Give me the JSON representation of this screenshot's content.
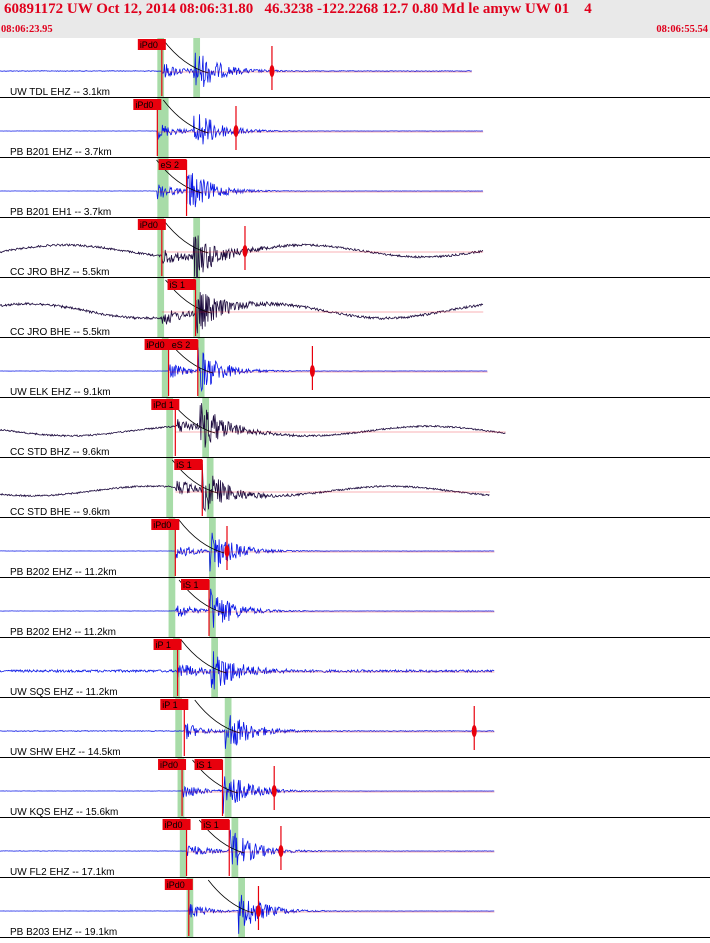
{
  "header": {
    "title": "60891172 UW Oct 12, 2014 08:06:31.80   46.3238 -122.2268 12.7 0.80 Md le amyw UW 01    4",
    "start_time": "08:06:23.95",
    "end_time": "08:06:55.54"
  },
  "colors": {
    "header_text": "#e0001c",
    "header_bg": "#e9e9e9",
    "trace_blue": "#0a17e6",
    "trace_dark": "#1c0a3e",
    "pick_red": "#e8000d",
    "window_green": "#a8dca8",
    "label_text": "#000000"
  },
  "chart_data": {
    "type": "line",
    "description_units": "seconds after 08:06:23.95",
    "x_range": [
      0,
      31.59
    ],
    "traces": [
      {
        "label": "UW TDL EHZ -- 3.1km",
        "color": "blue",
        "noise": 0.08,
        "p": {
          "label": "iPd0",
          "t": 7.2
        },
        "s": {
          "label": "",
          "t": 8.6
        },
        "green": [
          7.0,
          8.6
        ],
        "coda_end": 21.0,
        "end": 21.0,
        "red_tick": 12.1
      },
      {
        "label": "PB B201 EHZ -- 3.7km",
        "color": "blue",
        "noise": 0.02,
        "p": {
          "label": "iPd0",
          "t": 7.0
        },
        "s": {
          "label": "",
          "t": 8.6
        },
        "green": [
          7.0,
          7.2
        ],
        "coda_end": 21.5,
        "end": 21.5,
        "red_tick": 10.5
      },
      {
        "label": "PB B201 EH1 -- 3.7km",
        "color": "blue",
        "noise": 0.02,
        "p": {
          "label": "",
          "t": 7.0
        },
        "s": {
          "label": "eS 2",
          "t": 8.3
        },
        "green": [
          7.0,
          7.2
        ],
        "coda_end": 21.5,
        "end": 21.5,
        "red_tick": null
      },
      {
        "label": "CC JRO BHZ -- 5.5km",
        "color": "dark",
        "noise": 0.25,
        "p": {
          "label": "iPd0",
          "t": 7.2
        },
        "s": {
          "label": "",
          "t": 8.6
        },
        "green": [
          7.0,
          8.6
        ],
        "coda_end": 21.5,
        "end": 21.5,
        "red_tick": 10.9
      },
      {
        "label": "CC JRO BHE -- 5.5km",
        "color": "dark",
        "noise": 0.3,
        "p": {
          "label": "",
          "t": 7.2
        },
        "s": {
          "label": "iS 1",
          "t": 8.7
        },
        "green": [
          7.0,
          8.6
        ],
        "coda_end": 21.5,
        "end": 21.5,
        "red_tick": null
      },
      {
        "label": "UW ELK EHZ -- 9.1km",
        "color": "blue",
        "noise": 0.02,
        "p": {
          "label": "iPd0",
          "t": 7.5
        },
        "s": {
          "label": "eS 2",
          "t": 8.8
        },
        "green": [
          7.2,
          8.8
        ],
        "coda_end": 21.7,
        "end": 21.7,
        "red_tick": 13.9
      },
      {
        "label": "CC STD BHZ -- 9.6km",
        "color": "dark",
        "noise": 0.2,
        "p": {
          "label": "iPd 1",
          "t": 7.8
        },
        "s": {
          "label": "",
          "t": 8.9
        },
        "green": [
          7.4,
          9.0
        ],
        "coda_end": 22.5,
        "end": 22.5,
        "red_tick": null
      },
      {
        "label": "CC STD BHE -- 9.6km",
        "color": "dark",
        "noise": 0.2,
        "p": {
          "label": "",
          "t": 7.8
        },
        "s": {
          "label": "iS 1",
          "t": 9.0
        },
        "green": [
          7.4,
          9.2
        ],
        "coda_end": 21.8,
        "end": 21.8,
        "red_tick": null
      },
      {
        "label": "PB B202 EHZ -- 11.2km",
        "color": "blue",
        "noise": 0.02,
        "p": {
          "label": "iPd0",
          "t": 7.8
        },
        "s": {
          "label": "",
          "t": 9.3
        },
        "green": [
          7.5,
          9.3
        ],
        "coda_end": 22.0,
        "end": 22.0,
        "red_tick": 10.1
      },
      {
        "label": "PB B202 EH2 -- 11.2km",
        "color": "blue",
        "noise": 0.02,
        "p": {
          "label": "",
          "t": 7.8
        },
        "s": {
          "label": "iS 1",
          "t": 9.3
        },
        "green": [
          7.5,
          9.3
        ],
        "coda_end": 22.0,
        "end": 22.0,
        "red_tick": null
      },
      {
        "label": "UW SQS EHZ -- 11.2km",
        "color": "blue",
        "noise": 0.3,
        "p": {
          "label": "iP 1",
          "t": 7.9
        },
        "s": {
          "label": "",
          "t": 9.4
        },
        "green": [
          7.7,
          9.4
        ],
        "coda_end": 22.0,
        "end": 22.0,
        "red_tick": null
      },
      {
        "label": "UW SHW EHZ -- 14.5km",
        "color": "blue",
        "noise": 0.08,
        "p": {
          "label": "iP 1",
          "t": 8.2
        },
        "s": {
          "label": "",
          "t": 10.0
        },
        "green": [
          7.8,
          10.0
        ],
        "coda_end": 22.0,
        "end": 22.0,
        "red_tick": 21.1
      },
      {
        "label": "UW KQS EHZ -- 15.6km",
        "color": "blue",
        "noise": 0.02,
        "p": {
          "label": "iPd0",
          "t": 8.1
        },
        "s": {
          "label": "iS 1",
          "t": 9.9
        },
        "green": [
          7.9,
          10.0
        ],
        "coda_end": 22.0,
        "end": 22.0,
        "red_tick": 12.2
      },
      {
        "label": "UW FL2 EHZ -- 17.1km",
        "color": "blue",
        "noise": 0.04,
        "p": {
          "label": "iPd0",
          "t": 8.3
        },
        "s": {
          "label": "iS 1",
          "t": 10.2
        },
        "green": [
          8.0,
          10.3
        ],
        "coda_end": 22.0,
        "end": 22.0,
        "red_tick": 12.5
      },
      {
        "label": "PB B203 EHZ -- 19.1km",
        "color": "blue",
        "noise": 0.02,
        "p": {
          "label": "iPd0",
          "t": 8.4
        },
        "s": {
          "label": "",
          "t": 10.6
        },
        "green": [
          8.3,
          10.6
        ],
        "coda_end": 22.0,
        "end": 22.0,
        "red_tick": 11.5
      }
    ]
  }
}
